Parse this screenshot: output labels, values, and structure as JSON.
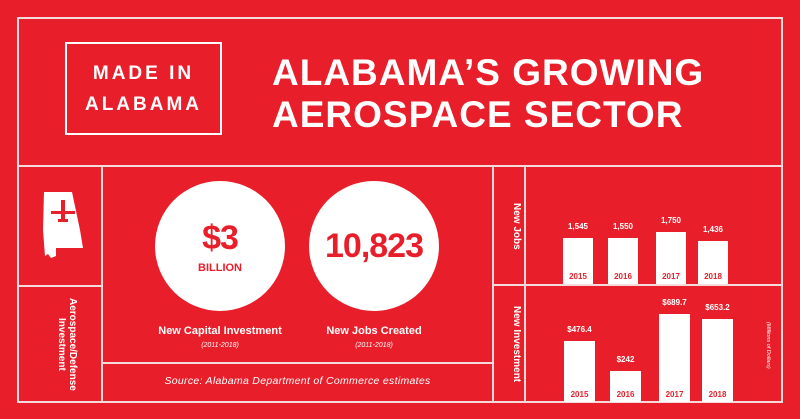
{
  "badge": {
    "line1": "MADE IN",
    "line2": "ALABAMA"
  },
  "title": {
    "line1": "ALABAMA’S GROWING",
    "line2": "AEROSPACE SECTOR"
  },
  "side_label": "Aerospace/Defense Investment",
  "stats": [
    {
      "value": "$3",
      "unit": "BILLION",
      "label": "New Capital Investment",
      "period": "(2011-2018)"
    },
    {
      "value": "10,823",
      "unit": "",
      "label": "New Jobs Created",
      "period": "(2011-2018)"
    }
  ],
  "source": "Source: Alabama Department of Commerce estimates",
  "colors": {
    "background": "#e81f2a",
    "foreground": "#ffffff"
  },
  "chart_data": [
    {
      "type": "bar",
      "title": "New Jobs",
      "categories": [
        "2015",
        "2016",
        "2017",
        "2018"
      ],
      "values": [
        1545,
        1550,
        1750,
        1436
      ],
      "labels": [
        "1,545",
        "1,550",
        "1,750",
        "1,436"
      ],
      "ylim": [
        0,
        1750
      ]
    },
    {
      "type": "bar",
      "title": "New Investment",
      "unit_note": "(Millions of Dollars)",
      "categories": [
        "2015",
        "2016",
        "2017",
        "2018"
      ],
      "values": [
        476.4,
        242,
        689.7,
        653.2
      ],
      "labels": [
        "$476.4",
        "$242",
        "$689.7",
        "$653.2"
      ],
      "ylim": [
        0,
        689.7
      ]
    }
  ]
}
